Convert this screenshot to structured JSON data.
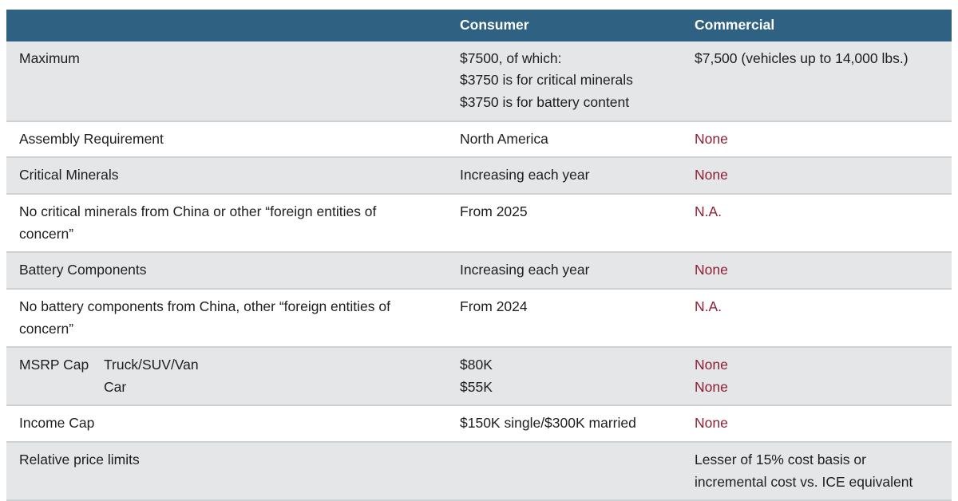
{
  "colors": {
    "header_bg": "#2f6183",
    "header_text": "#ffffff",
    "row_alt_bg": "#e4e6e8",
    "row_bg": "#ffffff",
    "text": "#1e1e1e",
    "accent_red": "#8e1f33",
    "divider": "#cdd1d4"
  },
  "table": {
    "columns": [
      "",
      "Consumer",
      "Commercial"
    ],
    "rows": [
      {
        "label": "Maximum",
        "consumer": [
          "$7500, of which:",
          "$3750 is for critical minerals",
          "$3750 is for battery content"
        ],
        "commercial": [
          "$7,500 (vehicles up to 14,000 lbs.)"
        ],
        "commercial_accent": false
      },
      {
        "label": "Assembly Requirement",
        "consumer": [
          "North America"
        ],
        "commercial": [
          "None"
        ],
        "commercial_accent": true
      },
      {
        "label": "Critical Minerals",
        "consumer": [
          "Increasing each year"
        ],
        "commercial": [
          "None"
        ],
        "commercial_accent": true
      },
      {
        "label": "No critical minerals from China or other “foreign entities of concern”",
        "consumer": [
          "From 2025"
        ],
        "commercial": [
          "N.A."
        ],
        "commercial_accent": true
      },
      {
        "label": "Battery Components",
        "consumer": [
          "Increasing each year"
        ],
        "commercial": [
          "None"
        ],
        "commercial_accent": true
      },
      {
        "label": "No battery components from China, other “foreign entities of concern”",
        "consumer": [
          "From 2024"
        ],
        "commercial": [
          "N.A."
        ],
        "commercial_accent": true
      },
      {
        "label": "MSRP Cap",
        "sublabels": [
          "Truck/SUV/Van",
          "Car"
        ],
        "consumer": [
          "$80K",
          "$55K"
        ],
        "commercial": [
          "None",
          "None"
        ],
        "commercial_accent": true
      },
      {
        "label": "Income Cap",
        "consumer": [
          "$150K single/$300K married"
        ],
        "commercial": [
          "None"
        ],
        "commercial_accent": true
      },
      {
        "label": "Relative price limits",
        "consumer": [],
        "commercial": [
          "Lesser of 15% cost basis or incremental cost vs. ICE equivalent"
        ],
        "commercial_accent": false
      }
    ]
  },
  "chart_data": {
    "type": "table",
    "title": "",
    "columns": [
      "",
      "Consumer",
      "Commercial"
    ],
    "rows": [
      [
        "Maximum",
        "$7500, of which: $3750 is for critical minerals; $3750 is for battery content",
        "$7,500 (vehicles up to 14,000 lbs.)"
      ],
      [
        "Assembly Requirement",
        "North America",
        "None"
      ],
      [
        "Critical Minerals",
        "Increasing each year",
        "None"
      ],
      [
        "No critical minerals from China or other “foreign entities of concern”",
        "From 2025",
        "N.A."
      ],
      [
        "Battery Components",
        "Increasing each year",
        "None"
      ],
      [
        "No battery components from China, other “foreign entities of concern”",
        "From 2024",
        "N.A."
      ],
      [
        "MSRP Cap — Truck/SUV/Van: $80K; Car: $55K",
        "$80K / $55K",
        "None / None"
      ],
      [
        "Income Cap",
        "$150K single/$300K married",
        "None"
      ],
      [
        "Relative price limits",
        "",
        "Lesser of 15% cost basis or incremental cost vs. ICE equivalent"
      ]
    ]
  }
}
